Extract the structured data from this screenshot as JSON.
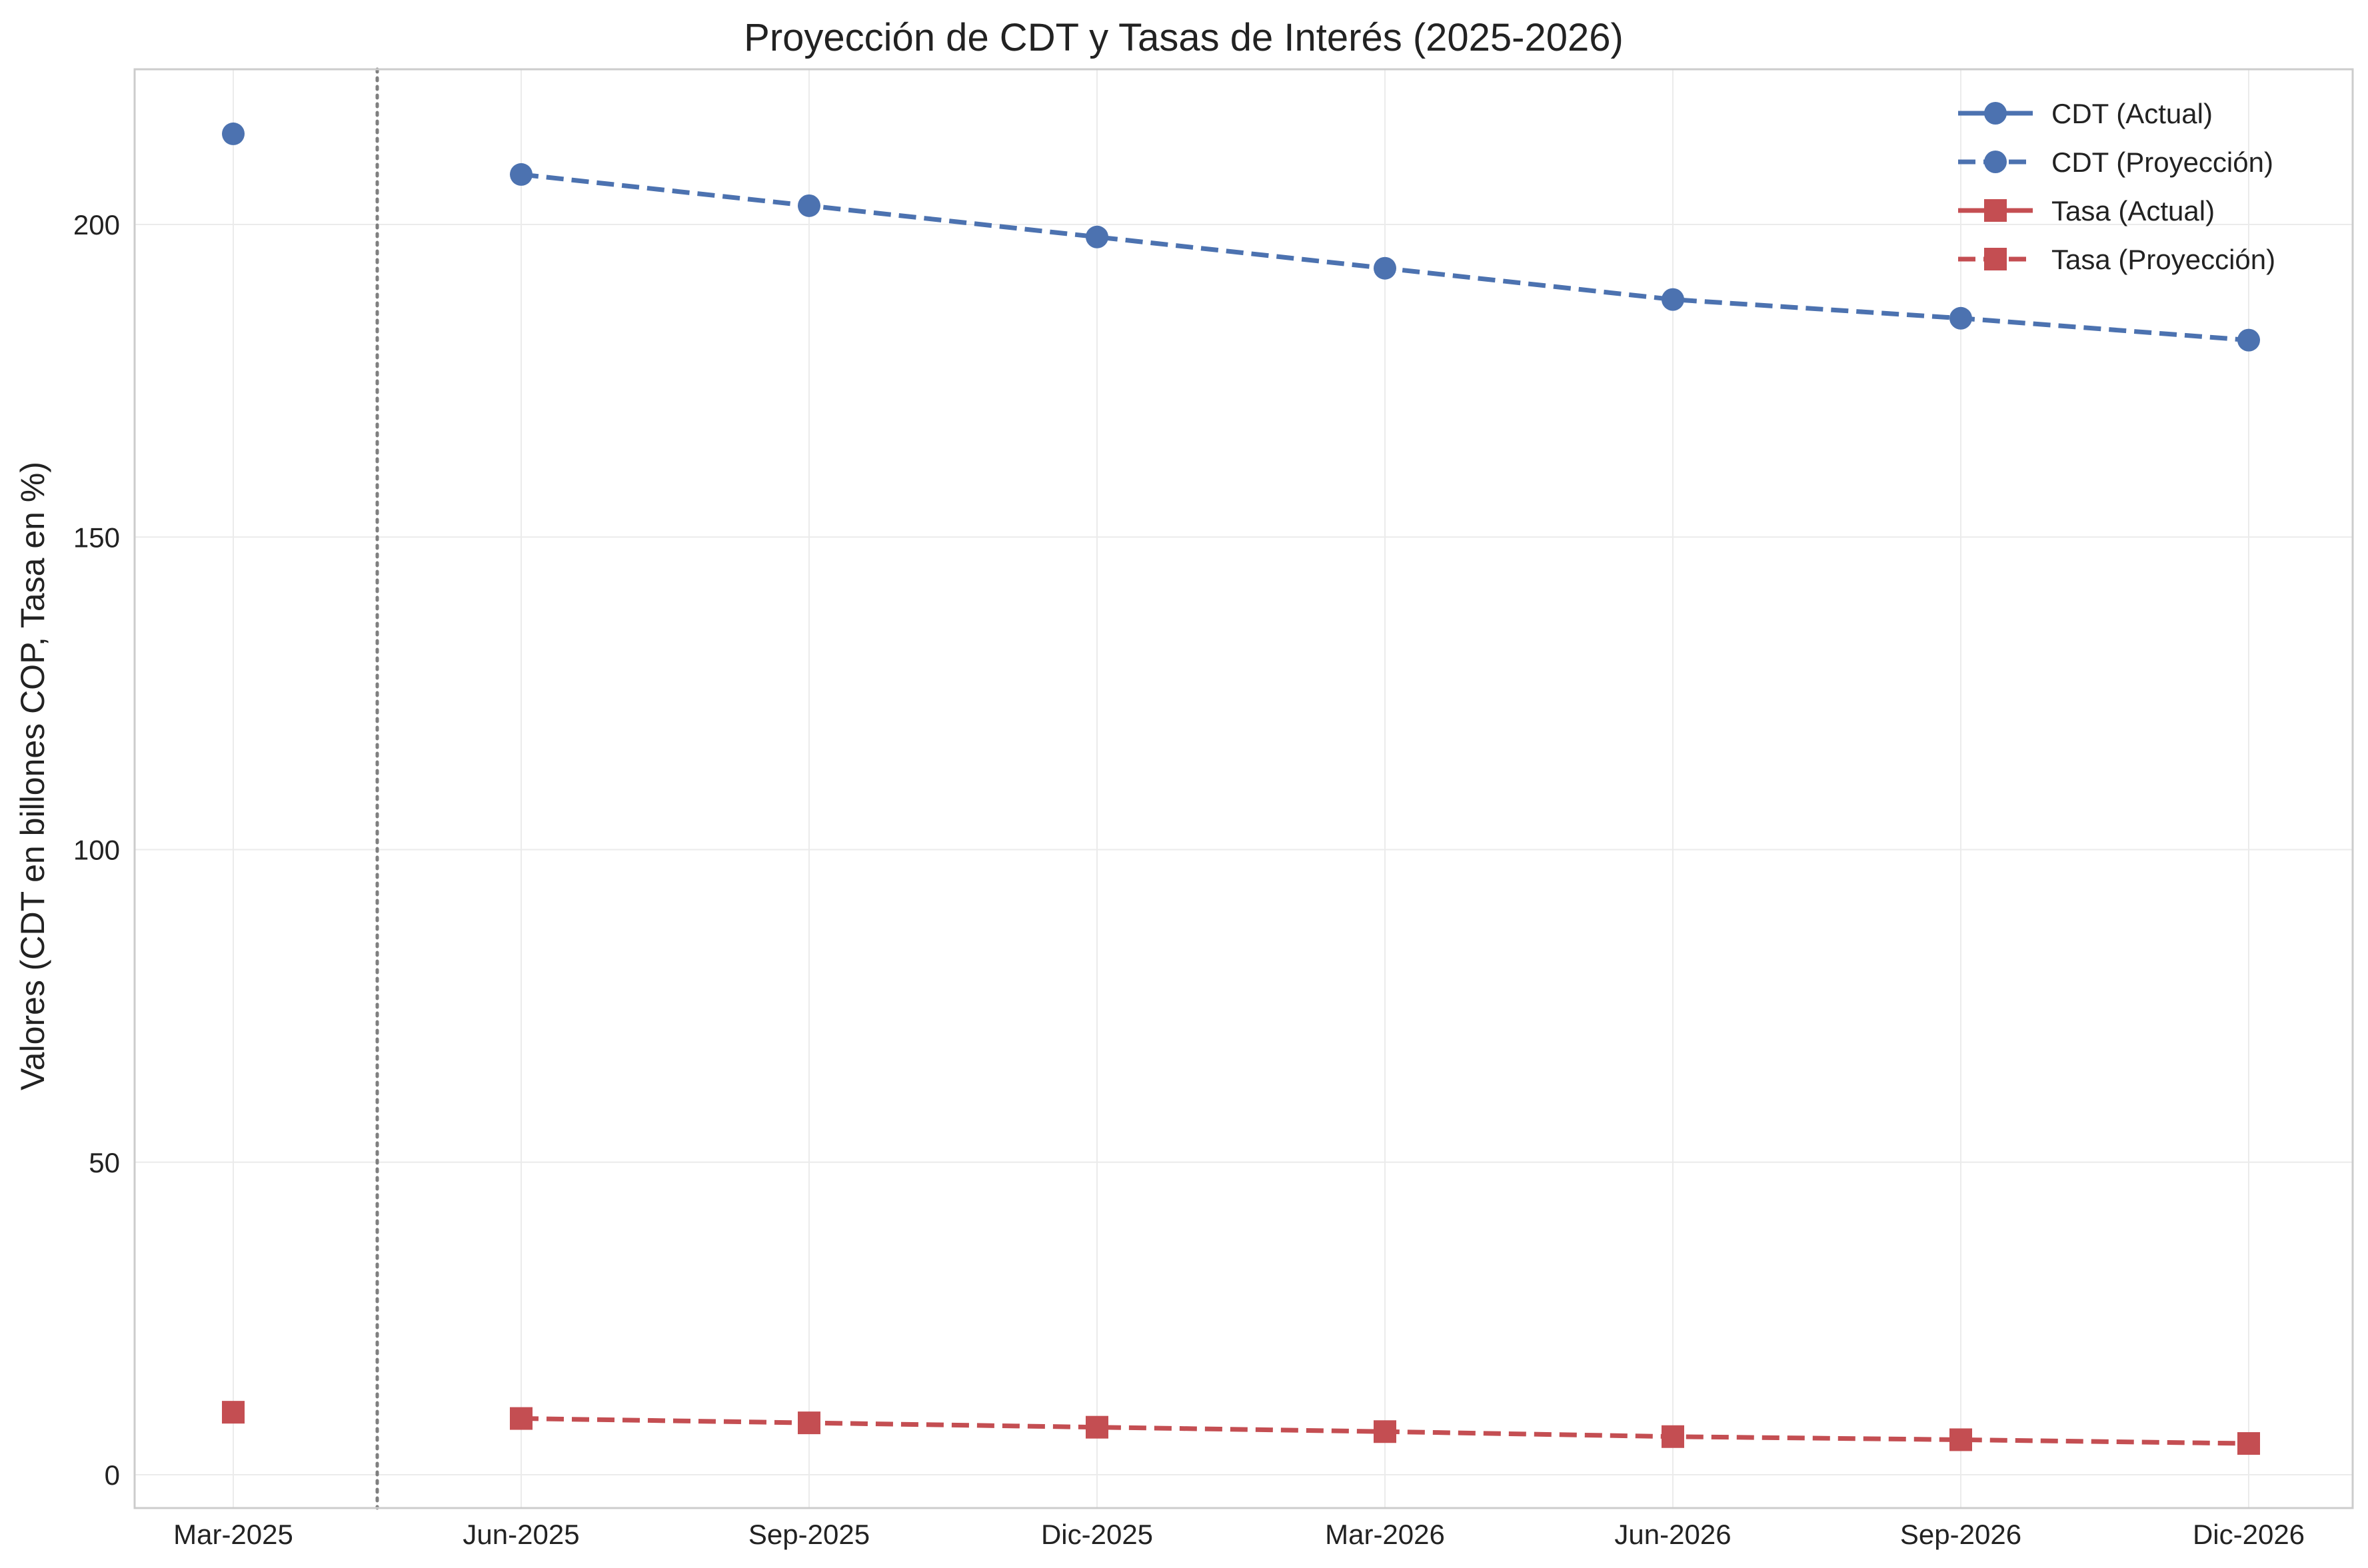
{
  "chart_data": {
    "type": "line",
    "title": "Proyección de CDT y Tasas de Interés (2025-2026)",
    "xlabel": "",
    "ylabel": "Valores (CDT en billones COP, Tasa en %)",
    "categories": [
      "Mar-2025",
      "Jun-2025",
      "Sep-2025",
      "Dic-2025",
      "Mar-2026",
      "Jun-2026",
      "Sep-2026",
      "Dic-2026"
    ],
    "ylim": [
      -5,
      225
    ],
    "yticks": [
      0,
      50,
      100,
      150,
      200
    ],
    "grid": true,
    "legend_position": "top-right",
    "divider_after_category": "Mar-2025",
    "series": [
      {
        "name": "CDT (Actual)",
        "style": "solid",
        "marker": "circle",
        "color": "#4c72b0",
        "values": [
          214.5,
          null,
          null,
          null,
          null,
          null,
          null,
          null
        ]
      },
      {
        "name": "CDT (Proyección)",
        "style": "dashed",
        "marker": "circle",
        "color": "#4c72b0",
        "values": [
          null,
          208,
          203,
          198,
          193,
          188,
          185,
          181.5
        ]
      },
      {
        "name": "Tasa (Actual)",
        "style": "solid",
        "marker": "square",
        "color": "#c44e52",
        "values": [
          10,
          null,
          null,
          null,
          null,
          null,
          null,
          null
        ]
      },
      {
        "name": "Tasa (Proyección)",
        "style": "dashed",
        "marker": "square",
        "color": "#c44e52",
        "values": [
          null,
          9,
          8.3,
          7.6,
          6.9,
          6.1,
          5.6,
          5
        ]
      }
    ]
  }
}
